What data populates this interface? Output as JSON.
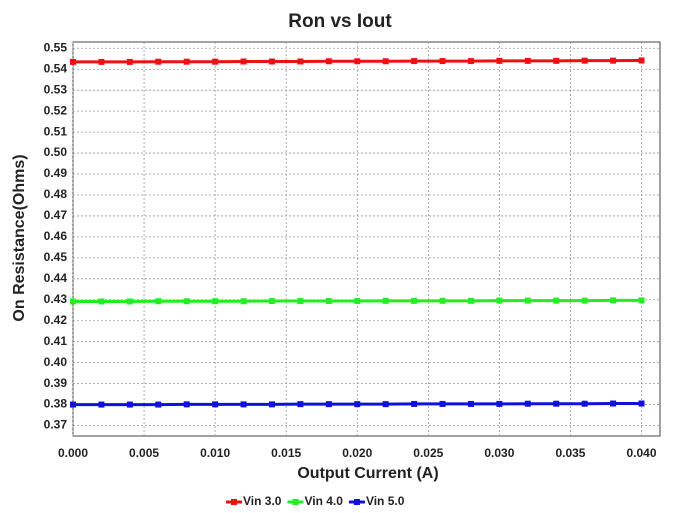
{
  "chart_data": {
    "type": "line",
    "title": "Ron vs Iout",
    "x_label": "Output Current (A)",
    "y_label": "On Resistance(Ohms)",
    "x": [
      0,
      0.002,
      0.004,
      0.006,
      0.008,
      0.01,
      0.012,
      0.014,
      0.016,
      0.018,
      0.02,
      0.022,
      0.024,
      0.026,
      0.028,
      0.03,
      0.032,
      0.034,
      0.036,
      0.038,
      0.04
    ],
    "series": [
      {
        "name": "Vin 3.0",
        "color": "#ee1111",
        "values": [
          0.5435,
          0.5435,
          0.5435,
          0.5436,
          0.5436,
          0.5436,
          0.5437,
          0.5437,
          0.5437,
          0.5438,
          0.5438,
          0.5438,
          0.5439,
          0.5439,
          0.5439,
          0.544,
          0.544,
          0.544,
          0.5441,
          0.5441,
          0.5442
        ]
      },
      {
        "name": "Vin 4.0",
        "color": "#22ee22",
        "values": [
          0.4292,
          0.4292,
          0.4292,
          0.4293,
          0.4293,
          0.4293,
          0.4293,
          0.4294,
          0.4294,
          0.4294,
          0.4294,
          0.4295,
          0.4295,
          0.4295,
          0.4295,
          0.4296,
          0.4296,
          0.4296,
          0.4296,
          0.4297,
          0.4297
        ]
      },
      {
        "name": "Vin 5.0",
        "color": "#1111dd",
        "values": [
          0.38,
          0.38,
          0.38,
          0.38,
          0.3801,
          0.3801,
          0.3801,
          0.3801,
          0.3802,
          0.3802,
          0.3802,
          0.3802,
          0.3803,
          0.3803,
          0.3803,
          0.3803,
          0.3804,
          0.3804,
          0.3804,
          0.3805,
          0.3805
        ]
      }
    ],
    "xlim": [
      0,
      0.0413
    ],
    "ylim": [
      0.365,
      0.553
    ],
    "xticks": [
      {
        "value": 0,
        "label": "0.000"
      },
      {
        "value": 0.005,
        "label": "0.005"
      },
      {
        "value": 0.01,
        "label": "0.010"
      },
      {
        "value": 0.015,
        "label": "0.015"
      },
      {
        "value": 0.02,
        "label": "0.020"
      },
      {
        "value": 0.025,
        "label": "0.025"
      },
      {
        "value": 0.03,
        "label": "0.030"
      },
      {
        "value": 0.035,
        "label": "0.035"
      },
      {
        "value": 0.04,
        "label": "0.040"
      }
    ],
    "yticks": [
      {
        "value": 0.37,
        "label": "0.37"
      },
      {
        "value": 0.38,
        "label": "0.38"
      },
      {
        "value": 0.39,
        "label": "0.39"
      },
      {
        "value": 0.4,
        "label": "0.40"
      },
      {
        "value": 0.41,
        "label": "0.41"
      },
      {
        "value": 0.42,
        "label": "0.42"
      },
      {
        "value": 0.43,
        "label": "0.43"
      },
      {
        "value": 0.44,
        "label": "0.44"
      },
      {
        "value": 0.45,
        "label": "0.45"
      },
      {
        "value": 0.46,
        "label": "0.46"
      },
      {
        "value": 0.47,
        "label": "0.47"
      },
      {
        "value": 0.48,
        "label": "0.48"
      },
      {
        "value": 0.49,
        "label": "0.49"
      },
      {
        "value": 0.5,
        "label": "0.50"
      },
      {
        "value": 0.51,
        "label": "0.51"
      },
      {
        "value": 0.52,
        "label": "0.52"
      },
      {
        "value": 0.53,
        "label": "0.53"
      },
      {
        "value": 0.54,
        "label": "0.54"
      },
      {
        "value": 0.55,
        "label": "0.55"
      }
    ],
    "grid": true,
    "legend": "bottom"
  }
}
